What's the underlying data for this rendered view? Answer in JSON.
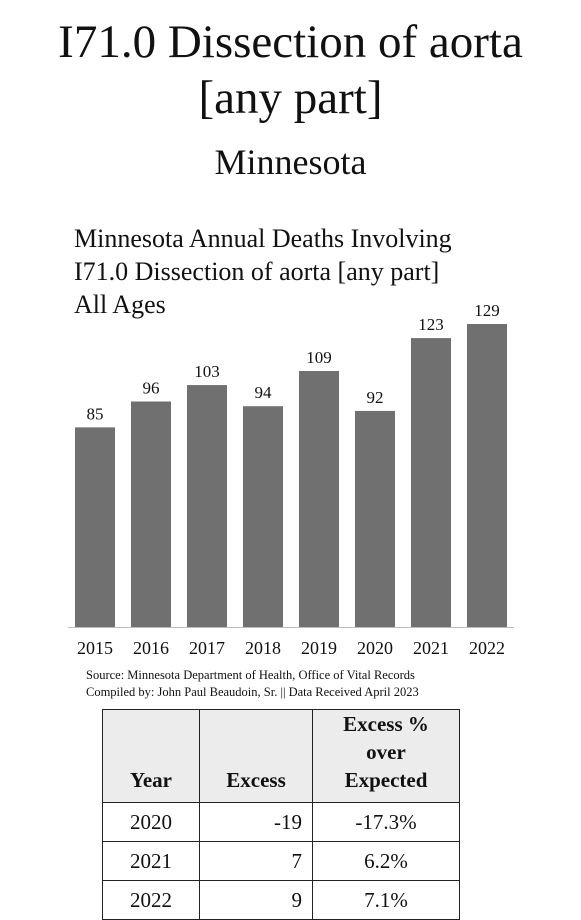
{
  "header": {
    "title_line1": "I71.0 Dissection of aorta",
    "title_line2": "[any part]",
    "subtitle": "Minnesota"
  },
  "chart_data": {
    "type": "bar",
    "title_lines": [
      "Minnesota Annual Deaths Involving",
      "I71.0 Dissection of aorta [any part]",
      "All Ages"
    ],
    "categories": [
      "2015",
      "2016",
      "2017",
      "2018",
      "2019",
      "2020",
      "2021",
      "2022"
    ],
    "values": [
      85,
      96,
      103,
      94,
      109,
      92,
      123,
      129
    ],
    "ylim": [
      0,
      129
    ],
    "bar_color": "#707070",
    "grid": false,
    "legend": "none"
  },
  "source": {
    "line1": "Source:  Minnesota Department of Health, Office of Vital Records",
    "line2": "Compiled by:  John Paul Beaudoin, Sr. || Data Received April 2023"
  },
  "table": {
    "headers": [
      "Year",
      "Excess",
      "Excess % over Expected"
    ],
    "rows": [
      [
        "2020",
        "-19",
        "-17.3%"
      ],
      [
        "2021",
        "7",
        "6.2%"
      ],
      [
        "2022",
        "9",
        "7.1%"
      ]
    ]
  }
}
